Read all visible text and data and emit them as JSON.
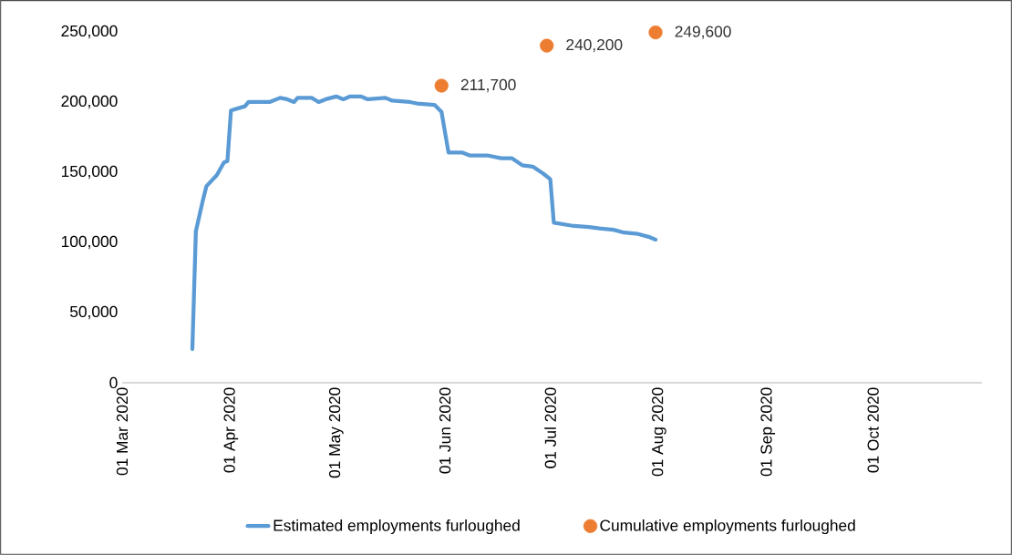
{
  "chart_data": {
    "type": "line",
    "xlim": [
      "2020-03-01",
      "2020-11-01"
    ],
    "xticks": [
      {
        "value": "2020-03-01",
        "label": "01 Mar 2020"
      },
      {
        "value": "2020-04-01",
        "label": "01 Apr 2020"
      },
      {
        "value": "2020-05-01",
        "label": "01 May 2020"
      },
      {
        "value": "2020-06-01",
        "label": "01 Jun 2020"
      },
      {
        "value": "2020-07-01",
        "label": "01 Jul 2020"
      },
      {
        "value": "2020-08-01",
        "label": "01 Aug 2020"
      },
      {
        "value": "2020-09-01",
        "label": "01 Sep 2020"
      },
      {
        "value": "2020-10-01",
        "label": "01 Oct 2020"
      }
    ],
    "ylim": [
      0,
      250000
    ],
    "yticks": [
      {
        "value": 0,
        "label": "0"
      },
      {
        "value": 50000,
        "label": "50,000"
      },
      {
        "value": 100000,
        "label": "100,000"
      },
      {
        "value": 150000,
        "label": "150,000"
      },
      {
        "value": 200000,
        "label": "200,000"
      },
      {
        "value": 250000,
        "label": "250,000"
      }
    ],
    "grid": false,
    "legend": "bottom",
    "series": [
      {
        "name": "Estimated employments furloughed",
        "color": "#5b9bd5",
        "marker": "none",
        "line_style": "solid",
        "x": [
          "2020-03-21",
          "2020-03-22",
          "2020-03-24",
          "2020-03-25",
          "2020-03-28",
          "2020-03-30",
          "2020-03-31",
          "2020-04-01",
          "2020-04-05",
          "2020-04-06",
          "2020-04-12",
          "2020-04-15",
          "2020-04-17",
          "2020-04-19",
          "2020-04-20",
          "2020-04-24",
          "2020-04-26",
          "2020-04-28",
          "2020-05-01",
          "2020-05-03",
          "2020-05-05",
          "2020-05-08",
          "2020-05-10",
          "2020-05-15",
          "2020-05-17",
          "2020-05-22",
          "2020-05-24",
          "2020-05-29",
          "2020-05-31",
          "2020-06-02",
          "2020-06-06",
          "2020-06-08",
          "2020-06-13",
          "2020-06-17",
          "2020-06-20",
          "2020-06-23",
          "2020-06-26",
          "2020-06-29",
          "2020-07-01",
          "2020-07-02",
          "2020-07-07",
          "2020-07-12",
          "2020-07-15",
          "2020-07-19",
          "2020-07-22",
          "2020-07-26",
          "2020-07-29",
          "2020-07-31"
        ],
        "values": [
          24000,
          108000,
          130000,
          140000,
          148000,
          157000,
          158000,
          194000,
          197000,
          200000,
          200000,
          203000,
          202000,
          200000,
          203000,
          203000,
          200000,
          202000,
          204000,
          202000,
          204000,
          204000,
          202000,
          203000,
          201000,
          200000,
          199000,
          198000,
          193000,
          164000,
          164000,
          162000,
          162000,
          160000,
          160000,
          155000,
          154000,
          149000,
          145000,
          114000,
          112000,
          111000,
          110000,
          109000,
          107000,
          106000,
          104000,
          102000
        ]
      },
      {
        "name": "Cumulative employments furloughed",
        "type": "scatter",
        "color": "#ed7d31",
        "marker": "circle",
        "x": [
          "2020-05-31",
          "2020-06-30",
          "2020-07-31"
        ],
        "values": [
          211700,
          240200,
          249600
        ],
        "value_labels": [
          "211,700",
          "240,200",
          "249,600"
        ]
      }
    ]
  }
}
